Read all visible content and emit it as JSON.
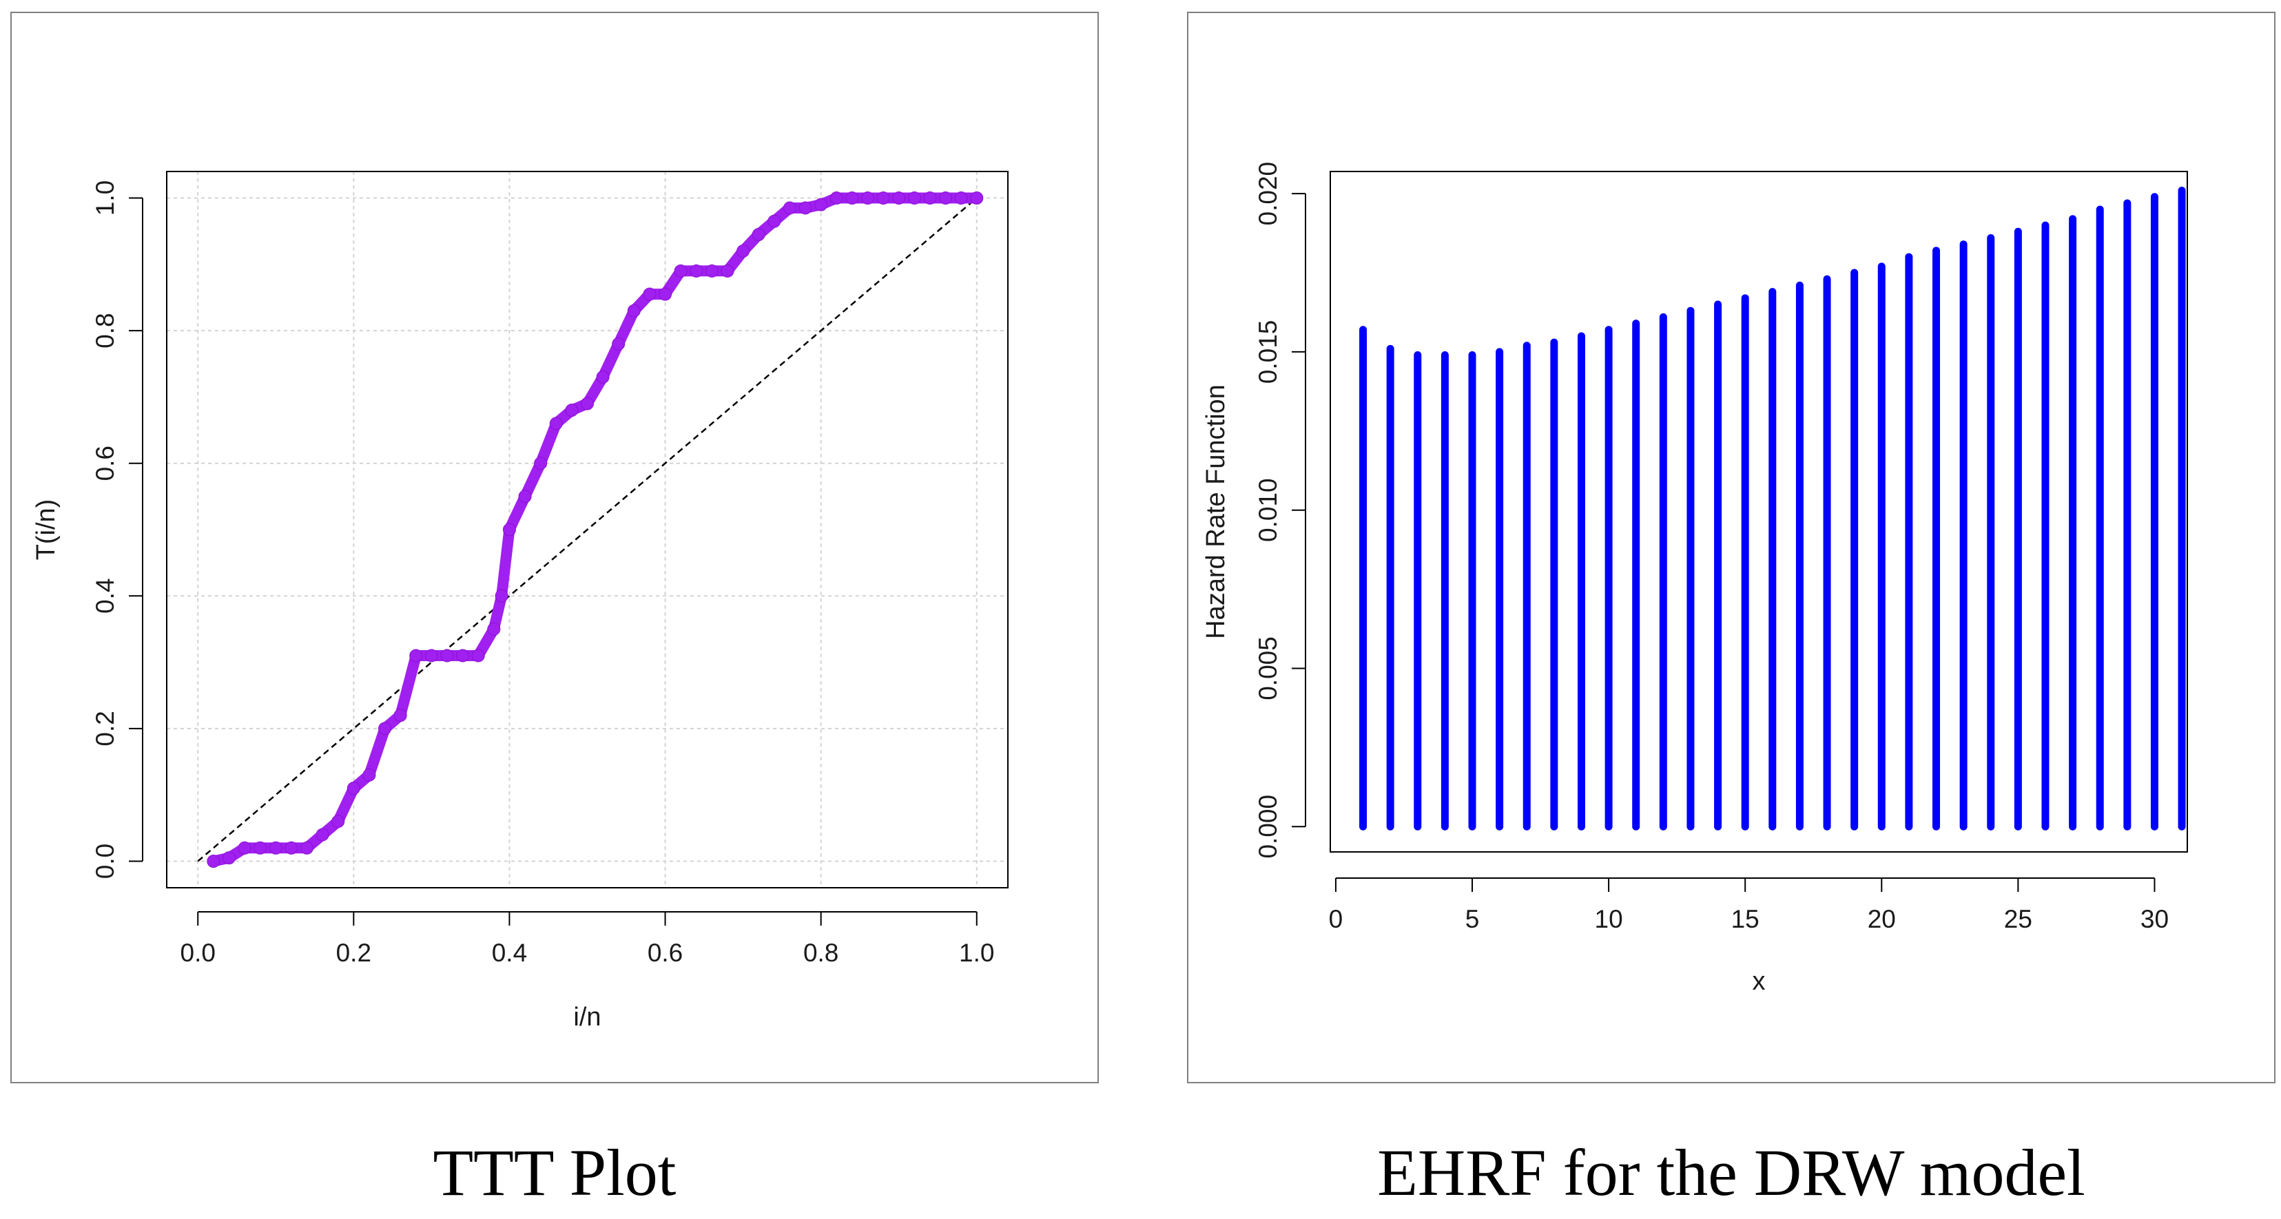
{
  "chart_data": [
    {
      "type": "line",
      "title": "TTT Plot",
      "xlabel": "i/n",
      "ylabel": "T(i/n)",
      "xlim": [
        -0.04,
        1.04
      ],
      "ylim": [
        -0.04,
        1.04
      ],
      "xticks": [
        0.0,
        0.2,
        0.4,
        0.6,
        0.8,
        1.0
      ],
      "yticks": [
        0.0,
        0.2,
        0.4,
        0.6,
        0.8,
        1.0
      ],
      "xtick_labels": [
        "0.0",
        "0.2",
        "0.4",
        "0.6",
        "0.8",
        "1.0"
      ],
      "ytick_labels": [
        "0.0",
        "0.2",
        "0.4",
        "0.6",
        "0.8",
        "1.0"
      ],
      "grid": true,
      "series": [
        {
          "name": "TTT",
          "color": "#a020f0",
          "x": [
            0.02,
            0.04,
            0.06,
            0.08,
            0.1,
            0.12,
            0.14,
            0.16,
            0.18,
            0.2,
            0.22,
            0.24,
            0.26,
            0.28,
            0.3,
            0.32,
            0.34,
            0.36,
            0.38,
            0.39,
            0.4,
            0.42,
            0.44,
            0.46,
            0.48,
            0.5,
            0.52,
            0.54,
            0.56,
            0.58,
            0.6,
            0.62,
            0.64,
            0.66,
            0.68,
            0.7,
            0.72,
            0.74,
            0.76,
            0.78,
            0.8,
            0.82,
            0.84,
            0.86,
            0.88,
            0.9,
            0.92,
            0.94,
            0.96,
            0.98,
            1.0
          ],
          "y": [
            0.0,
            0.005,
            0.02,
            0.02,
            0.02,
            0.02,
            0.02,
            0.04,
            0.06,
            0.11,
            0.13,
            0.2,
            0.22,
            0.31,
            0.31,
            0.31,
            0.31,
            0.31,
            0.35,
            0.4,
            0.5,
            0.55,
            0.6,
            0.66,
            0.68,
            0.69,
            0.73,
            0.78,
            0.83,
            0.855,
            0.855,
            0.89,
            0.89,
            0.89,
            0.89,
            0.92,
            0.945,
            0.965,
            0.985,
            0.985,
            0.99,
            1.0,
            1.0,
            1.0,
            1.0,
            1.0,
            1.0,
            1.0,
            1.0,
            1.0,
            1.0
          ]
        },
        {
          "name": "reference",
          "color": "#000000",
          "style": "dashed",
          "x": [
            0.0,
            1.0
          ],
          "y": [
            0.0,
            1.0
          ]
        }
      ]
    },
    {
      "type": "bar",
      "title": "EHRF for the DRW model",
      "xlabel": "x",
      "ylabel": "Hazard Rate Function",
      "xlim": [
        -0.2,
        31.2
      ],
      "ylim": [
        -0.0008,
        0.0207
      ],
      "xticks": [
        0,
        5,
        10,
        15,
        20,
        25,
        30
      ],
      "yticks": [
        0.0,
        0.005,
        0.01,
        0.015,
        0.02
      ],
      "xtick_labels": [
        "0",
        "5",
        "10",
        "15",
        "20",
        "25",
        "30"
      ],
      "ytick_labels": [
        "0.000",
        "0.005",
        "0.010",
        "0.015",
        "0.020"
      ],
      "grid": false,
      "color": "#0000ff",
      "x": [
        1,
        2,
        3,
        4,
        5,
        6,
        7,
        8,
        9,
        10,
        11,
        12,
        13,
        14,
        15,
        16,
        17,
        18,
        19,
        20,
        21,
        22,
        23,
        24,
        25,
        26,
        27,
        28,
        29,
        30,
        31
      ],
      "values": [
        0.0157,
        0.0151,
        0.0149,
        0.0149,
        0.0149,
        0.015,
        0.0152,
        0.0153,
        0.0155,
        0.0157,
        0.0159,
        0.0161,
        0.0163,
        0.0165,
        0.0167,
        0.0169,
        0.0171,
        0.0173,
        0.0175,
        0.0177,
        0.018,
        0.0182,
        0.0184,
        0.0186,
        0.0188,
        0.019,
        0.0192,
        0.0195,
        0.0197,
        0.0199,
        0.0201
      ]
    }
  ]
}
